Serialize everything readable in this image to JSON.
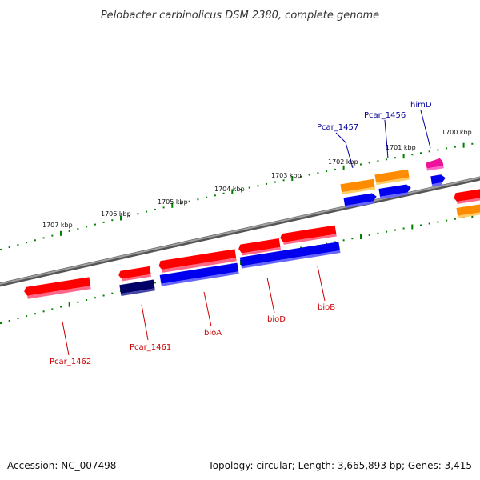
{
  "title": "Pelobacter carbinolicus DSM 2380, complete genome",
  "scale_labels": [
    {
      "label": "1707 kbp"
    },
    {
      "label": "1706 kbp"
    },
    {
      "label": "1705 kbp"
    },
    {
      "label": "1704 kbp"
    },
    {
      "label": "1703 kbp"
    },
    {
      "label": "1702 kbp"
    },
    {
      "label": "1701 kbp"
    },
    {
      "label": "1700 kbp"
    }
  ],
  "gene_labels": [
    {
      "label": "Pcar_1462",
      "color": "#cc0000"
    },
    {
      "label": "Pcar_1461",
      "color": "#cc0000"
    },
    {
      "label": "bioA",
      "color": "#cc0000"
    },
    {
      "label": "bioD",
      "color": "#cc0000"
    },
    {
      "label": "bioB",
      "color": "#cc0000"
    },
    {
      "label": "Pcar_1457",
      "color": "#000099"
    },
    {
      "label": "Pcar_1456",
      "color": "#000099"
    },
    {
      "label": "himD",
      "color": "#000099"
    }
  ],
  "colors": {
    "forward_gene": "#ff0000",
    "coding_blue": "#0000ee",
    "dark_navy": "#000066",
    "orange": "#ff8c00",
    "magenta": "#ee1199",
    "backbone": "#888888",
    "tick_green": "#008000"
  },
  "footer": {
    "accession": "Accession: NC_007498",
    "topology": "Topology: circular; Length: 3,665,893 bp; Genes: 3,415"
  }
}
